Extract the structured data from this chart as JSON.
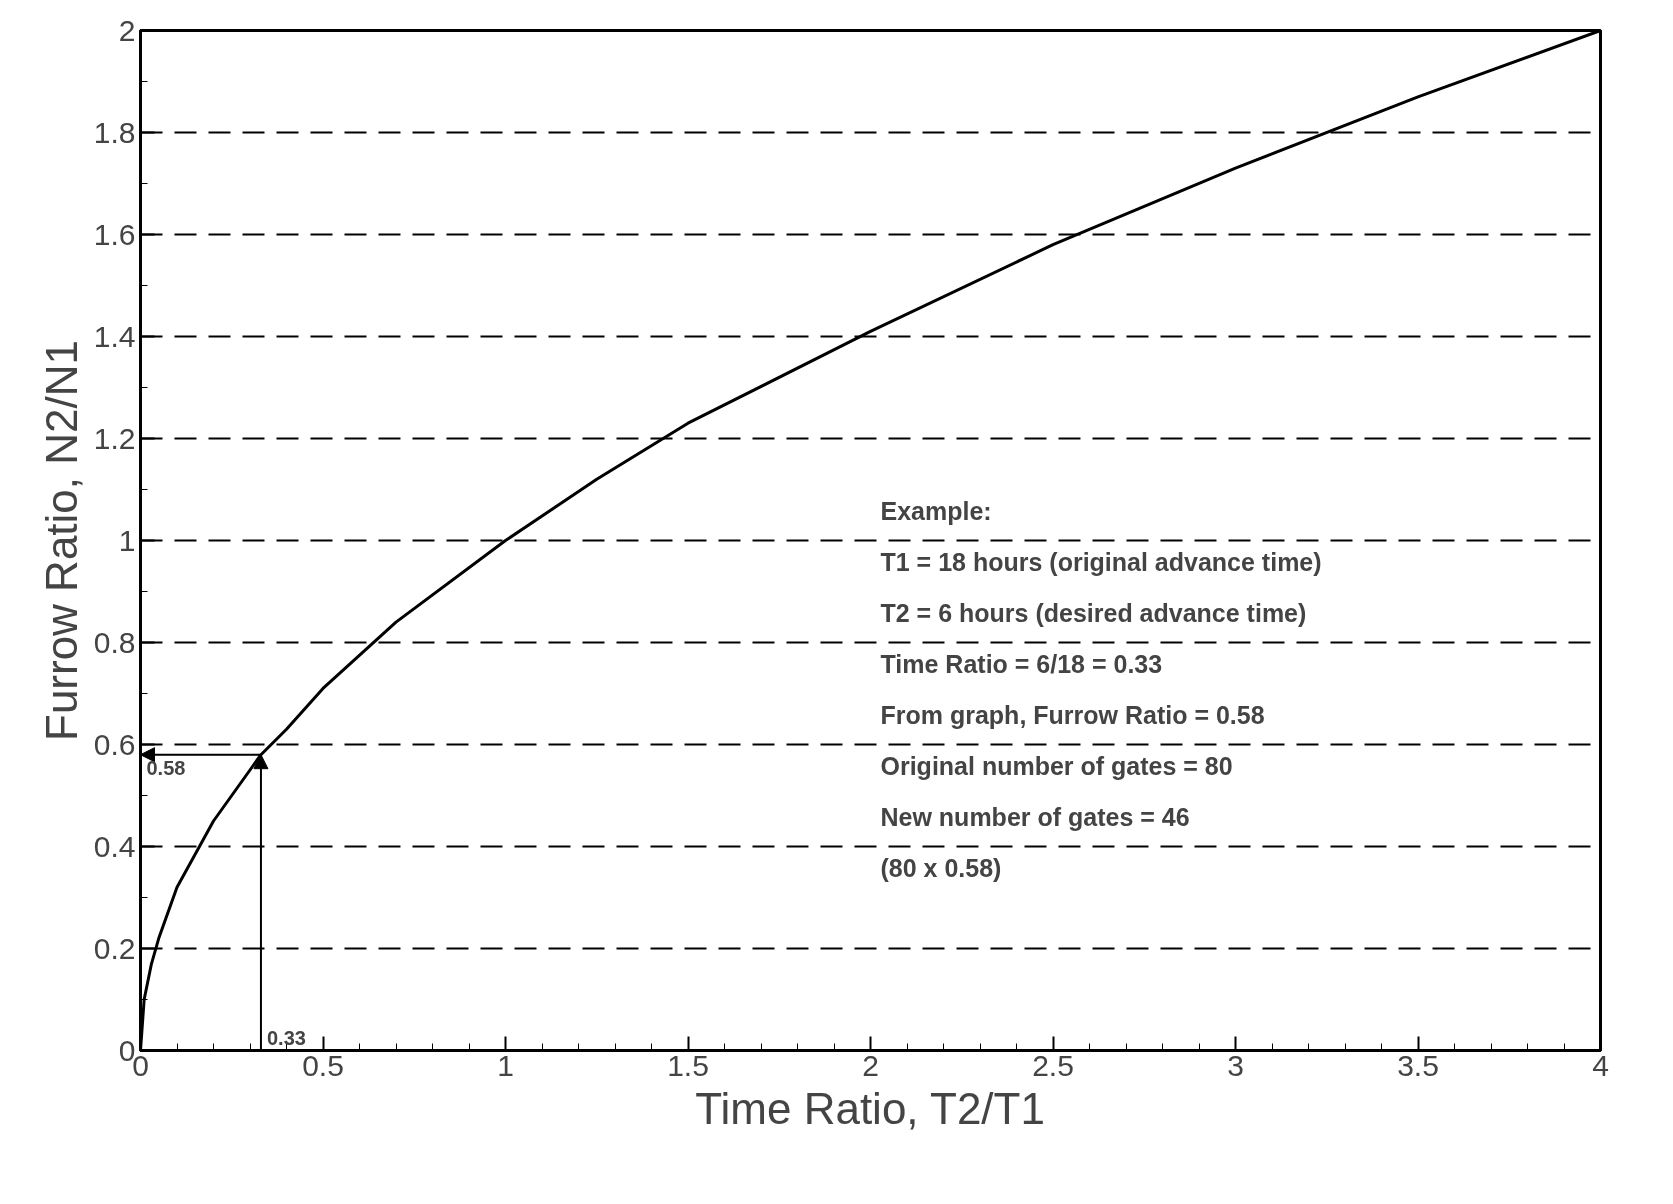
{
  "chart_data": {
    "type": "line",
    "xlabel": "Time Ratio, T2/T1",
    "ylabel": "Furrow Ratio, N2/N1",
    "x": [
      0,
      0.01,
      0.03,
      0.05,
      0.1,
      0.2,
      0.3,
      0.33,
      0.4,
      0.5,
      0.7,
      1,
      1.25,
      1.5,
      2,
      2.5,
      3,
      3.5,
      4
    ],
    "series": [
      {
        "color": "#000000",
        "values": [
          0,
          0.1,
          0.17,
          0.22,
          0.32,
          0.45,
          0.55,
          0.58,
          0.63,
          0.71,
          0.84,
          1,
          1.12,
          1.23,
          1.41,
          1.58,
          1.73,
          1.87,
          2
        ]
      }
    ],
    "xlim": [
      0,
      4
    ],
    "ylim": [
      0,
      2
    ],
    "xticks": [
      0,
      0.5,
      1,
      1.5,
      2,
      2.5,
      3,
      3.5,
      4
    ],
    "yticks": [
      0,
      0.2,
      0.4,
      0.6,
      0.8,
      1,
      1.2,
      1.4,
      1.6,
      1.8,
      2
    ],
    "grid": "y",
    "marker": "none",
    "line_style": "solid",
    "annotations": [
      "Example:",
      "T1 = 18 hours (original advance time)",
      "T2 =  6 hours (desired advance time)",
      "Time Ratio = 6/18 = 0.33",
      "From graph, Furrow Ratio = 0.58",
      "Original number of gates = 80",
      "New number of gates = 46",
      "(80 x 0.58)",
      {
        "text": "0.33",
        "x": 0.33,
        "y": 0.58
      },
      {
        "text": "0.58",
        "x": 0.33,
        "y": 0.58
      }
    ]
  }
}
